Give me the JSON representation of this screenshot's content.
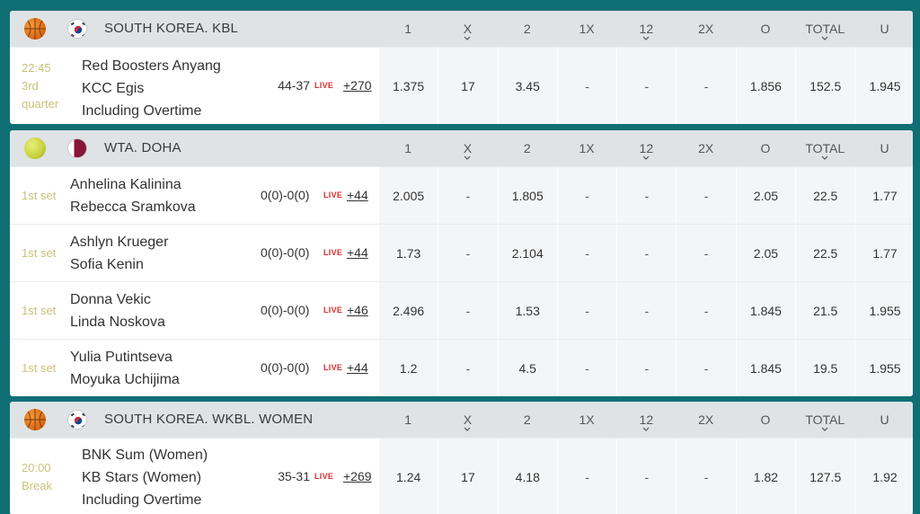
{
  "columns": [
    "1",
    "X",
    "2",
    "1X",
    "12",
    "2X",
    "O",
    "TOTAL",
    "U"
  ],
  "columns_with_chevron": [
    false,
    true,
    false,
    false,
    true,
    false,
    false,
    true,
    false
  ],
  "blocks": [
    {
      "sport_icon": "basketball-icon",
      "flag_icon": "south-korea-flag-icon",
      "league": "SOUTH KOREA. KBL",
      "rows": [
        {
          "status": [
            "22:45",
            "3rd",
            "quarter"
          ],
          "teams": [
            "Red Boosters Anyang",
            "KCC Egis",
            "Including Overtime"
          ],
          "score": "44-37",
          "live": "LIVE",
          "more": "+270",
          "odds": [
            "1.375",
            "17",
            "3.45",
            "-",
            "-",
            "-",
            "1.856",
            "152.5",
            "1.945"
          ]
        }
      ]
    },
    {
      "sport_icon": "tennis-ball-icon",
      "flag_icon": "qatar-flag-icon",
      "league": "WTA. DOHA",
      "rows": [
        {
          "status": [
            "1st set"
          ],
          "teams": [
            "Anhelina Kalinina",
            "Rebecca Sramkova"
          ],
          "score": "0(0)-0(0)",
          "live": "LIVE",
          "more": "+44",
          "odds": [
            "2.005",
            "-",
            "1.805",
            "-",
            "-",
            "-",
            "2.05",
            "22.5",
            "1.77"
          ]
        },
        {
          "status": [
            "1st set"
          ],
          "teams": [
            "Ashlyn Krueger",
            "Sofia Kenin"
          ],
          "score": "0(0)-0(0)",
          "live": "LIVE",
          "more": "+44",
          "odds": [
            "1.73",
            "-",
            "2.104",
            "-",
            "-",
            "-",
            "2.05",
            "22.5",
            "1.77"
          ]
        },
        {
          "status": [
            "1st set"
          ],
          "teams": [
            "Donna Vekic",
            "Linda Noskova"
          ],
          "score": "0(0)-0(0)",
          "live": "LIVE",
          "more": "+46",
          "odds": [
            "2.496",
            "-",
            "1.53",
            "-",
            "-",
            "-",
            "1.845",
            "21.5",
            "1.955"
          ]
        },
        {
          "status": [
            "1st set"
          ],
          "teams": [
            "Yulia Putintseva",
            "Moyuka Uchijima"
          ],
          "score": "0(0)-0(0)",
          "live": "LIVE",
          "more": "+44",
          "odds": [
            "1.2",
            "-",
            "4.5",
            "-",
            "-",
            "-",
            "1.845",
            "19.5",
            "1.955"
          ]
        }
      ]
    },
    {
      "sport_icon": "basketball-icon",
      "flag_icon": "south-korea-flag-icon",
      "league": "SOUTH KOREA. WKBL. WOMEN",
      "rows": [
        {
          "status": [
            "20:00",
            "Break"
          ],
          "teams": [
            "BNK Sum (Women)",
            "KB Stars (Women)",
            "Including Overtime"
          ],
          "score": "35-31",
          "live": "LIVE",
          "more": "+269",
          "odds": [
            "1.24",
            "17",
            "4.18",
            "-",
            "-",
            "-",
            "1.82",
            "127.5",
            "1.92"
          ]
        }
      ]
    }
  ]
}
